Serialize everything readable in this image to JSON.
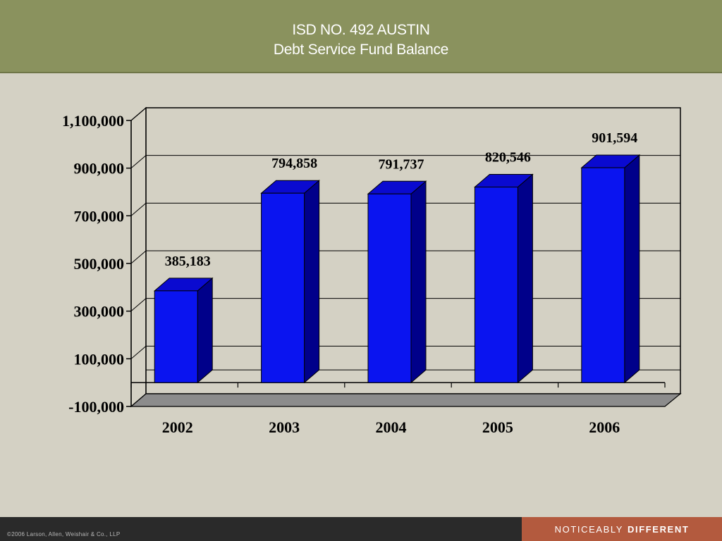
{
  "header": {
    "title_line1": "ISD NO. 492 AUSTIN",
    "title_line2": "Debt Service Fund Balance"
  },
  "footer": {
    "copyright": "©2006 Larson, Allen, Weishair & Co., LLP",
    "tagline_regular": "NOTICEABLY",
    "tagline_bold": "DIFFERENT"
  },
  "colors": {
    "bar_front": "#0a14f0",
    "bar_side": "#00008a",
    "bar_top": "#0a0ad0",
    "header_bg": "#8a925e",
    "slide_bg": "#d4d1c4",
    "floor": "#8c8c8c"
  },
  "chart_data": {
    "type": "bar",
    "title": "Debt Service Fund Balance",
    "categories": [
      "2002",
      "2003",
      "2004",
      "2005",
      "2006"
    ],
    "values": [
      385183,
      794858,
      791737,
      820546,
      901594
    ],
    "value_labels": [
      "385,183",
      "794,858",
      "791,737",
      "820,546",
      "901,594"
    ],
    "ylim": [
      -100000,
      1100000
    ],
    "yticks": [
      -100000,
      100000,
      300000,
      500000,
      700000,
      900000,
      1100000
    ],
    "ytick_labels": [
      "-100,000",
      "100,000",
      "300,000",
      "500,000",
      "700,000",
      "900,000",
      "1,100,000"
    ],
    "grid": true,
    "style": "3d"
  }
}
